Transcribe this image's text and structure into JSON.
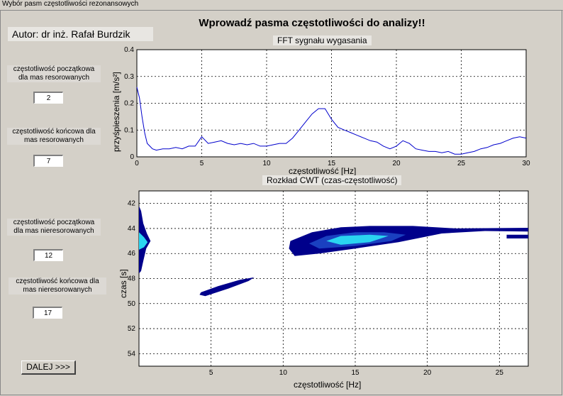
{
  "window": {
    "title": "Wybór pasm częstotliwości rezonansowych"
  },
  "header": {
    "author": "Autor: dr inż. Rafał Burdzik",
    "instruction": "Wprowadź pasma częstotliwości do analizy!!"
  },
  "form": {
    "fields": [
      {
        "label_line1": "częstotliwość początkowa",
        "label_line2": "dla mas resorowanych",
        "value": "2"
      },
      {
        "label_line1": "częstotliwość końcowa dla",
        "label_line2": "mas resorowanych",
        "value": "7"
      },
      {
        "label_line1": "częstotliwość początkowa",
        "label_line2": "dla mas nieresorowanych",
        "value": "12"
      },
      {
        "label_line1": "częstotliwość końcowa dla",
        "label_line2": "mas nieresorowanych",
        "value": "17"
      }
    ],
    "next_label": "DALEJ >>>"
  },
  "colors": {
    "line": "#0000cc",
    "cwt_dark": "#00008b",
    "cwt_mid": "#1a40c0",
    "cwt_light": "#2ad4f0"
  },
  "chart_data": [
    {
      "type": "line",
      "title": "FFT sygnału wygasania",
      "xlabel": "częstotliwość [Hz]",
      "ylabel": "przyśpieszenia [m/s²]",
      "xlim": [
        0,
        30
      ],
      "ylim": [
        0,
        0.4
      ],
      "xticks": [
        "0",
        "5",
        "10",
        "15",
        "20",
        "25",
        "30"
      ],
      "yticks": [
        "0",
        "0.1",
        "0.2",
        "0.3",
        "0.4"
      ],
      "grid": true,
      "series": [
        {
          "x": [
            0,
            0.2,
            0.4,
            0.6,
            0.8,
            1.0,
            1.2,
            1.5,
            2,
            2.5,
            3,
            3.5,
            4,
            4.5,
            5,
            5.5,
            6,
            6.5,
            7,
            7.5,
            8,
            8.5,
            9,
            9.5,
            10,
            10.5,
            11,
            11.5,
            12,
            12.5,
            13,
            13.5,
            14,
            14.5,
            15,
            15.5,
            16,
            16.5,
            17,
            17.5,
            18,
            18.5,
            19,
            19.5,
            20,
            20.5,
            21,
            21.5,
            22,
            22.5,
            23,
            23.5,
            24,
            24.5,
            25,
            25.5,
            26,
            26.5,
            27,
            27.5,
            28,
            28.5,
            29,
            29.5,
            30
          ],
          "y": [
            0.26,
            0.22,
            0.15,
            0.09,
            0.05,
            0.04,
            0.03,
            0.025,
            0.03,
            0.03,
            0.035,
            0.03,
            0.04,
            0.04,
            0.075,
            0.05,
            0.055,
            0.06,
            0.05,
            0.045,
            0.05,
            0.045,
            0.05,
            0.04,
            0.04,
            0.045,
            0.05,
            0.05,
            0.07,
            0.1,
            0.13,
            0.16,
            0.18,
            0.18,
            0.14,
            0.11,
            0.1,
            0.09,
            0.08,
            0.07,
            0.06,
            0.055,
            0.04,
            0.03,
            0.04,
            0.06,
            0.05,
            0.03,
            0.025,
            0.02,
            0.02,
            0.015,
            0.02,
            0.01,
            0.01,
            0.015,
            0.02,
            0.03,
            0.035,
            0.045,
            0.05,
            0.06,
            0.07,
            0.075,
            0.07
          ]
        }
      ]
    },
    {
      "type": "heatmap",
      "title": "Rozkład CWT (czas-częstotliwość)",
      "xlabel": "częstotliwość [Hz]",
      "ylabel": "czas [s]",
      "xlim": [
        0,
        27
      ],
      "ylim": [
        41,
        55
      ],
      "xticks": [
        "5",
        "10",
        "15",
        "20",
        "25"
      ],
      "yticks": [
        "42",
        "44",
        "46",
        "48",
        "50",
        "52",
        "54"
      ],
      "grid": true
    }
  ]
}
